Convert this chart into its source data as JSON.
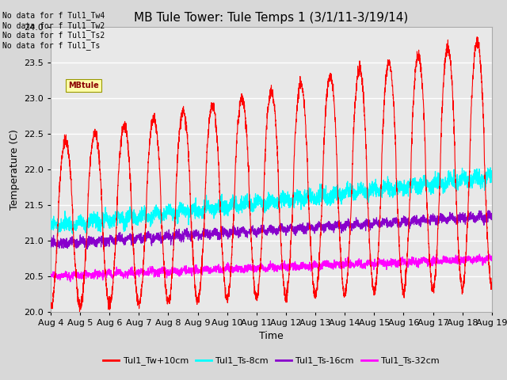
{
  "title": "MB Tule Tower: Tule Temps 1 (3/1/11-3/19/14)",
  "xlabel": "Time",
  "ylabel": "Temperature (C)",
  "ylim": [
    20.0,
    24.0
  ],
  "yticks": [
    20.0,
    20.5,
    21.0,
    21.5,
    22.0,
    22.5,
    23.0,
    23.5,
    24.0
  ],
  "xtick_labels": [
    "Aug 4",
    "Aug 5",
    "Aug 6",
    "Aug 7",
    "Aug 8",
    "Aug 9",
    "Aug 10",
    "Aug 11",
    "Aug 12",
    "Aug 13",
    "Aug 14",
    "Aug 15",
    "Aug 16",
    "Aug 17",
    "Aug 18",
    "Aug 19"
  ],
  "series_colors": [
    "#ff0000",
    "#00ffff",
    "#8800cc",
    "#ff00ff"
  ],
  "legend_labels": [
    "Tul1_Tw+10cm",
    "Tul1_Ts-8cm",
    "Tul1_Ts-16cm",
    "Tul1_Ts-32cm"
  ],
  "legend_colors": [
    "#ff0000",
    "#00ffff",
    "#8800cc",
    "#ff00ff"
  ],
  "nodata_lines": [
    "No data for f Tul1_Tw4",
    "No data for f Tul1_Tw2",
    "No data for f Tul1_Ts2",
    "No data for f Tul1_Ts"
  ],
  "bg_color": "#d8d8d8",
  "plot_bg": "#e8e8e8",
  "n_points": 3600,
  "days": 15,
  "title_fontsize": 11,
  "axis_fontsize": 9,
  "tick_fontsize": 8
}
